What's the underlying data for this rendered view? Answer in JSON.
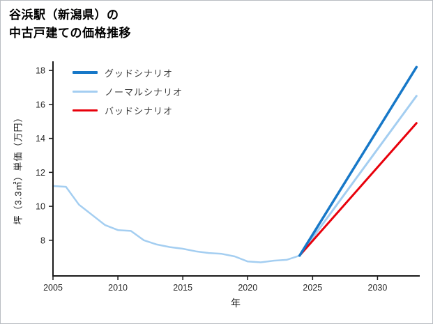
{
  "title": {
    "line1": "谷浜駅（新潟県）の",
    "line2": "中古戸建ての価格推移"
  },
  "axes": {
    "x_label": "年",
    "y_label": "坪（3.3㎡）単価（万円）"
  },
  "legend": {
    "items": [
      {
        "label": "グッドシナリオ",
        "color": "#1778c8",
        "linewidth": 4
      },
      {
        "label": "ノーマルシナリオ",
        "color": "#a4cef1",
        "linewidth": 3
      },
      {
        "label": "バッドシナリオ",
        "color": "#e8000b",
        "linewidth": 3
      }
    ]
  },
  "chart_data": {
    "type": "line",
    "title": "谷浜駅（新潟県）の中古戸建ての価格推移",
    "xlabel": "年",
    "ylabel": "坪（3.3㎡）単価（万円）",
    "xlim": [
      2005,
      2033.2
    ],
    "ylim": [
      5.9,
      18.5
    ],
    "x_ticks": [
      2005,
      2010,
      2015,
      2020,
      2025,
      2030
    ],
    "y_ticks": [
      8,
      10,
      12,
      14,
      16,
      18
    ],
    "grid": false,
    "legend_position": "upper-left",
    "axis_color": "#1a1a1a",
    "tick_label_color": "#262626",
    "series": [
      {
        "name": "history",
        "color": "#a4cef1",
        "linewidth": 2.5,
        "x": [
          2005,
          2006,
          2007,
          2008,
          2009,
          2010,
          2011,
          2012,
          2013,
          2014,
          2015,
          2016,
          2017,
          2018,
          2019,
          2020,
          2021,
          2022,
          2023,
          2024
        ],
        "y": [
          11.2,
          11.15,
          10.1,
          9.5,
          8.9,
          8.6,
          8.55,
          8.0,
          7.75,
          7.6,
          7.5,
          7.35,
          7.25,
          7.2,
          7.05,
          6.75,
          6.7,
          6.8,
          6.85,
          7.1
        ]
      },
      {
        "name": "ノーマルシナリオ",
        "color": "#a4cef1",
        "linewidth": 3,
        "x": [
          2024,
          2033
        ],
        "y": [
          7.1,
          16.5
        ]
      },
      {
        "name": "バッドシナリオ",
        "color": "#e8000b",
        "linewidth": 3,
        "x": [
          2024,
          2033
        ],
        "y": [
          7.1,
          14.9
        ]
      },
      {
        "name": "グッドシナリオ",
        "color": "#1778c8",
        "linewidth": 3.5,
        "x": [
          2024,
          2033
        ],
        "y": [
          7.1,
          18.2
        ]
      }
    ]
  }
}
